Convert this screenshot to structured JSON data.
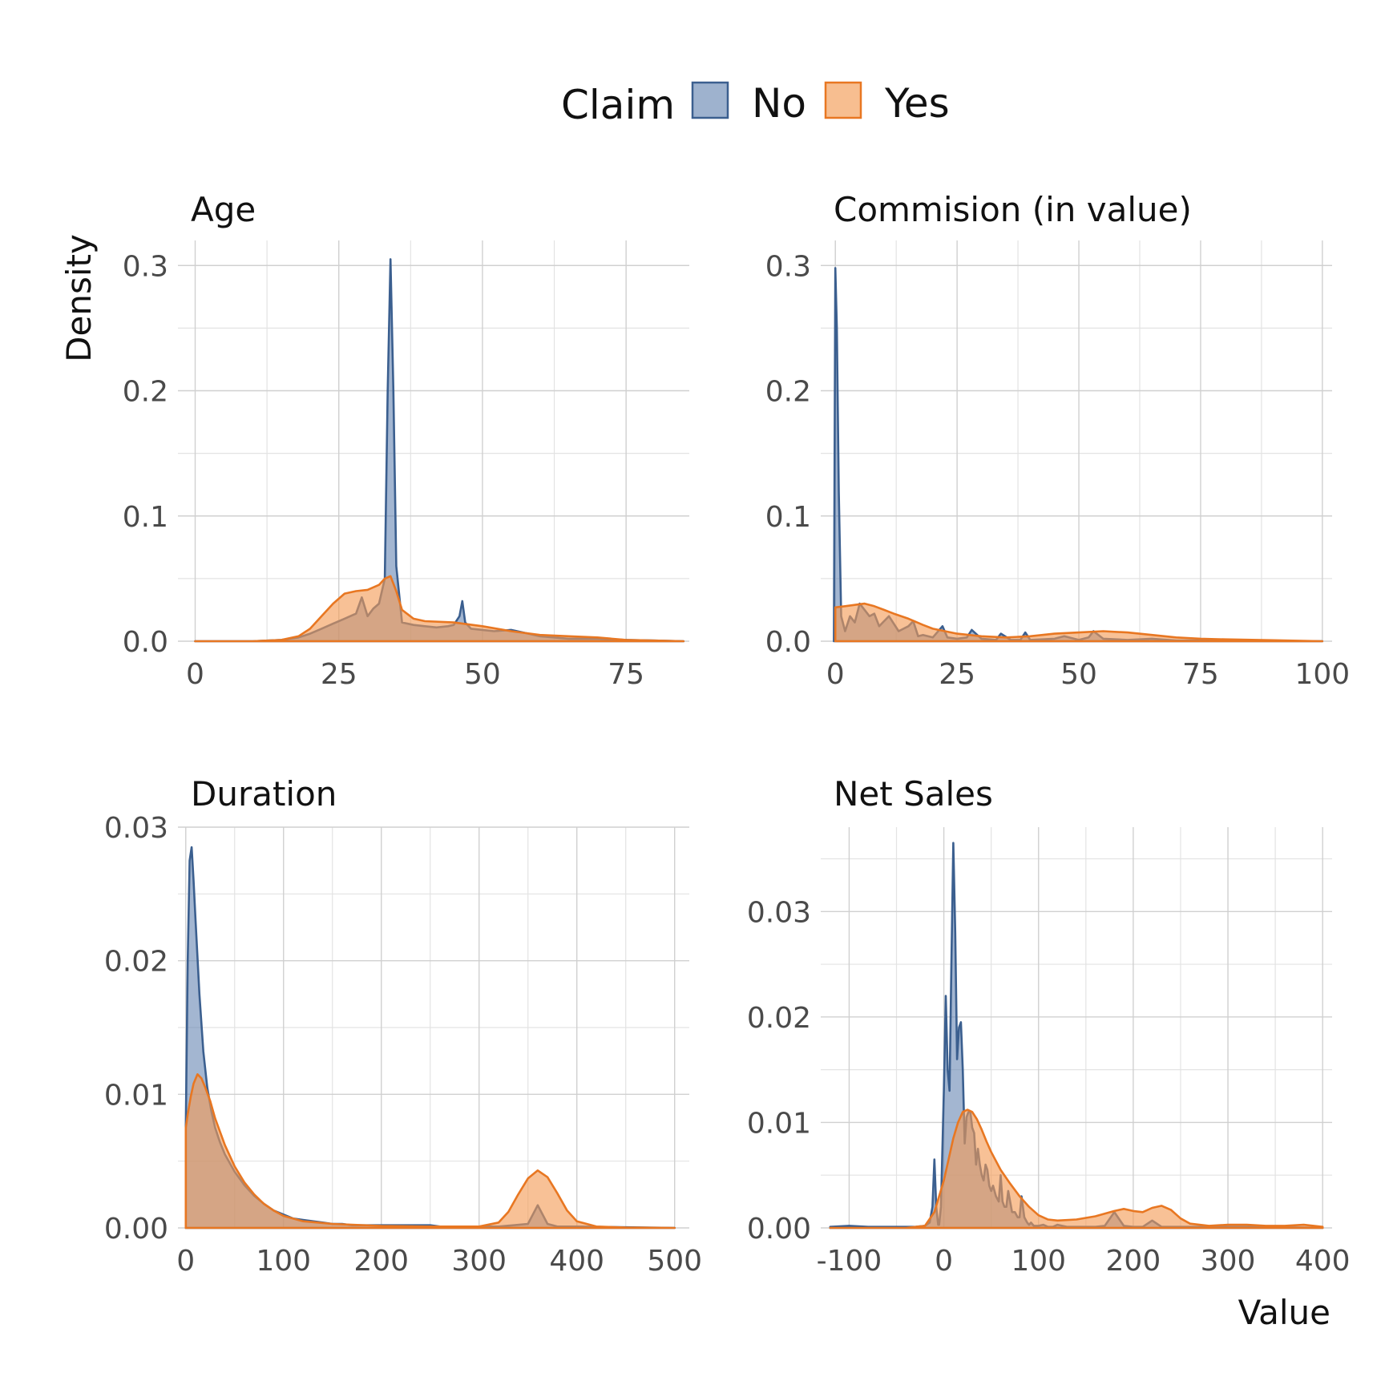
{
  "legend": {
    "title": "Claim",
    "entries": [
      {
        "label": "No",
        "fill": "#6a89b4",
        "stroke": "#3b5f8f"
      },
      {
        "label": "Yes",
        "fill": "#f39b55",
        "stroke": "#e87722"
      }
    ]
  },
  "axis_titles": {
    "y": "Density",
    "x": "Value"
  },
  "chart_data": [
    {
      "type": "area",
      "title": "Age",
      "xlim": [
        -3,
        86
      ],
      "ylim": [
        0,
        0.32
      ],
      "xticks": [
        0,
        25,
        50,
        75
      ],
      "xtick_labels": [
        "0",
        "25",
        "50",
        "75"
      ],
      "yticks": [
        0,
        0.1,
        0.2,
        0.3
      ],
      "ytick_labels": [
        "0.0",
        "0.1",
        "0.2",
        "0.3"
      ],
      "series": [
        {
          "name": "No",
          "x": [
            0,
            10,
            15,
            18,
            20,
            22,
            24,
            26,
            28,
            29,
            30,
            31,
            32,
            33,
            33.5,
            34,
            34.5,
            35,
            36,
            38,
            40,
            42,
            44,
            45,
            46,
            46.5,
            47,
            48,
            50,
            52,
            55,
            58,
            60,
            65,
            70,
            75,
            80,
            85
          ],
          "y": [
            0,
            0,
            0.001,
            0.003,
            0.006,
            0.01,
            0.014,
            0.018,
            0.022,
            0.035,
            0.02,
            0.026,
            0.03,
            0.05,
            0.2,
            0.305,
            0.2,
            0.06,
            0.015,
            0.013,
            0.012,
            0.011,
            0.012,
            0.013,
            0.02,
            0.032,
            0.015,
            0.01,
            0.009,
            0.008,
            0.009,
            0.006,
            0.004,
            0.002,
            0.002,
            0.001,
            0.0005,
            0
          ]
        },
        {
          "name": "Yes",
          "x": [
            0,
            10,
            15,
            18,
            20,
            22,
            24,
            26,
            28,
            30,
            32,
            33,
            34,
            35,
            36,
            38,
            40,
            45,
            50,
            55,
            60,
            65,
            70,
            75,
            80,
            85
          ],
          "y": [
            0,
            0,
            0.001,
            0.004,
            0.01,
            0.02,
            0.03,
            0.038,
            0.04,
            0.041,
            0.045,
            0.05,
            0.052,
            0.04,
            0.025,
            0.018,
            0.016,
            0.015,
            0.012,
            0.008,
            0.005,
            0.004,
            0.003,
            0.001,
            0.0005,
            0
          ]
        }
      ]
    },
    {
      "type": "area",
      "title": "Commision (in value)",
      "xlim": [
        -3,
        102
      ],
      "ylim": [
        0,
        0.32
      ],
      "xticks": [
        0,
        25,
        50,
        75,
        100
      ],
      "xtick_labels": [
        "0",
        "25",
        "50",
        "75",
        "100"
      ],
      "yticks": [
        0,
        0.1,
        0.2,
        0.3
      ],
      "ytick_labels": [
        "0.0",
        "0.1",
        "0.2",
        "0.3"
      ],
      "series": [
        {
          "name": "No",
          "x": [
            -0.3,
            0,
            0.3,
            0.7,
            1.2,
            2,
            3,
            4,
            5,
            6,
            7,
            8,
            9,
            10,
            11,
            12,
            13,
            14,
            15,
            16,
            17,
            18,
            20,
            22,
            23,
            25,
            27,
            28,
            30,
            33,
            34,
            36,
            38,
            39,
            40,
            45,
            47,
            50,
            52,
            53,
            55,
            60,
            65,
            70,
            80,
            90,
            100
          ],
          "y": [
            0,
            0.298,
            0.25,
            0.12,
            0.02,
            0.008,
            0.02,
            0.015,
            0.03,
            0.025,
            0.02,
            0.022,
            0.012,
            0.016,
            0.02,
            0.014,
            0.008,
            0.01,
            0.012,
            0.016,
            0.004,
            0.005,
            0.003,
            0.012,
            0.003,
            0.002,
            0.003,
            0.009,
            0.002,
            0.001,
            0.006,
            0.001,
            0.001,
            0.007,
            0.001,
            0.002,
            0.004,
            0.001,
            0.003,
            0.008,
            0.002,
            0.001,
            0.002,
            0.0005,
            0.0005,
            0.0002,
            0
          ]
        },
        {
          "name": "Yes",
          "x": [
            0,
            2,
            4,
            6,
            8,
            10,
            12,
            15,
            18,
            20,
            25,
            30,
            35,
            40,
            45,
            50,
            55,
            60,
            65,
            70,
            75,
            80,
            90,
            100
          ],
          "y": [
            0.027,
            0.028,
            0.029,
            0.03,
            0.028,
            0.025,
            0.022,
            0.018,
            0.013,
            0.01,
            0.006,
            0.004,
            0.003,
            0.004,
            0.006,
            0.007,
            0.008,
            0.007,
            0.005,
            0.003,
            0.002,
            0.0015,
            0.0008,
            0
          ]
        }
      ]
    },
    {
      "type": "area",
      "title": "Duration",
      "xlim": [
        -8,
        515
      ],
      "ylim": [
        0,
        0.03
      ],
      "xticks": [
        0,
        100,
        200,
        300,
        400,
        500
      ],
      "xtick_labels": [
        "0",
        "100",
        "200",
        "300",
        "400",
        "500"
      ],
      "yticks": [
        0,
        0.01,
        0.02,
        0.03
      ],
      "ytick_labels": [
        "0.00",
        "0.01",
        "0.02",
        "0.03"
      ],
      "series": [
        {
          "name": "No",
          "x": [
            0,
            2,
            4,
            6,
            8,
            10,
            14,
            18,
            22,
            26,
            30,
            35,
            40,
            50,
            60,
            70,
            80,
            90,
            100,
            110,
            120,
            130,
            140,
            150,
            160,
            170,
            180,
            200,
            230,
            250,
            260,
            280,
            300,
            320,
            350,
            355,
            360,
            365,
            370,
            380,
            400,
            450,
            480,
            500
          ],
          "y": [
            0.0075,
            0.02,
            0.0275,
            0.0285,
            0.026,
            0.023,
            0.0175,
            0.0132,
            0.0105,
            0.0088,
            0.0075,
            0.0064,
            0.0055,
            0.0042,
            0.0032,
            0.0024,
            0.0018,
            0.0013,
            0.001,
            0.0007,
            0.0006,
            0.0005,
            0.0004,
            0.0003,
            0.0003,
            0.0002,
            0.0002,
            0.0002,
            0.0002,
            0.0002,
            0.0001,
            0.0001,
            0.0001,
            0.0001,
            0.0003,
            0.001,
            0.0017,
            0.001,
            0.0003,
            0.0001,
            0.0001,
            5e-05,
            2e-05,
            0
          ]
        },
        {
          "name": "Yes",
          "x": [
            0,
            2,
            5,
            8,
            12,
            16,
            20,
            25,
            30,
            40,
            50,
            60,
            70,
            80,
            90,
            100,
            120,
            150,
            200,
            250,
            300,
            320,
            330,
            340,
            350,
            360,
            370,
            380,
            390,
            400,
            420,
            450,
            500
          ],
          "y": [
            0.0075,
            0.0085,
            0.0098,
            0.0108,
            0.0115,
            0.0112,
            0.0105,
            0.0095,
            0.0082,
            0.0062,
            0.0046,
            0.0034,
            0.0025,
            0.0018,
            0.0013,
            0.0009,
            0.0005,
            0.0003,
            0.00015,
            0.0001,
            0.0001,
            0.0004,
            0.0012,
            0.0025,
            0.0037,
            0.0043,
            0.0038,
            0.0026,
            0.0013,
            0.0005,
            0.0001,
            3e-05,
            0
          ]
        }
      ]
    },
    {
      "type": "area",
      "title": "Net Sales",
      "xlim": [
        -130,
        410
      ],
      "ylim": [
        0,
        0.038
      ],
      "xticks": [
        -100,
        0,
        100,
        200,
        300,
        400
      ],
      "xtick_labels": [
        "-100",
        "0",
        "100",
        "200",
        "300",
        "400"
      ],
      "yticks": [
        0,
        0.01,
        0.02,
        0.03
      ],
      "ytick_labels": [
        "0.00",
        "0.01",
        "0.02",
        "0.03"
      ],
      "series": [
        {
          "name": "No",
          "x": [
            -120,
            -100,
            -80,
            -60,
            -40,
            -30,
            -20,
            -15,
            -12,
            -10,
            -8,
            -6,
            -5,
            -3,
            0,
            2,
            4,
            6,
            8,
            10,
            12,
            14,
            16,
            18,
            20,
            22,
            24,
            26,
            28,
            30,
            32,
            34,
            36,
            38,
            40,
            42,
            44,
            46,
            48,
            50,
            52,
            55,
            58,
            60,
            62,
            64,
            66,
            68,
            70,
            72,
            75,
            78,
            80,
            82,
            85,
            88,
            90,
            92,
            95,
            98,
            100,
            105,
            110,
            115,
            120,
            130,
            140,
            150,
            160,
            170,
            180,
            190,
            200,
            210,
            220,
            230,
            240,
            260,
            280,
            300,
            320,
            340,
            360,
            380,
            400
          ],
          "y": [
            0.0001,
            0.0002,
            0.0001,
            0.0001,
            0.0001,
            0.0001,
            0.0002,
            0.0005,
            0.002,
            0.0065,
            0.002,
            0.0003,
            0.0003,
            0.002,
            0.013,
            0.022,
            0.015,
            0.013,
            0.025,
            0.0365,
            0.028,
            0.016,
            0.019,
            0.0195,
            0.015,
            0.008,
            0.0105,
            0.011,
            0.011,
            0.0095,
            0.009,
            0.006,
            0.0075,
            0.006,
            0.005,
            0.0045,
            0.006,
            0.0055,
            0.004,
            0.0035,
            0.004,
            0.003,
            0.0025,
            0.005,
            0.0025,
            0.002,
            0.002,
            0.0035,
            0.0025,
            0.0015,
            0.0015,
            0.001,
            0.001,
            0.003,
            0.001,
            0.0005,
            0.0003,
            0.0005,
            0.0002,
            0.0002,
            0.0002,
            0.0003,
            0.0001,
            0.0001,
            0.0003,
            0.0001,
            0.0001,
            0.0001,
            0.0001,
            0.0002,
            0.0015,
            0.0002,
            0.0001,
            0.0001,
            0.0007,
            0.0001,
            0.0001,
            0.0001,
            0.0001,
            0.0001,
            0.0001,
            0.0001,
            5e-05,
            3e-05,
            0
          ]
        },
        {
          "name": "Yes",
          "x": [
            -120,
            -80,
            -40,
            -20,
            -10,
            0,
            5,
            10,
            15,
            20,
            25,
            30,
            35,
            40,
            45,
            50,
            60,
            70,
            80,
            90,
            100,
            110,
            120,
            140,
            160,
            180,
            190,
            200,
            210,
            220,
            230,
            240,
            250,
            260,
            280,
            300,
            320,
            340,
            360,
            380,
            400
          ],
          "y": [
            0,
            0,
            0,
            0.0002,
            0.0015,
            0.0045,
            0.0065,
            0.0085,
            0.01,
            0.011,
            0.0112,
            0.011,
            0.0103,
            0.0093,
            0.0082,
            0.0072,
            0.0055,
            0.0042,
            0.003,
            0.002,
            0.0012,
            0.0008,
            0.0007,
            0.0008,
            0.0011,
            0.0016,
            0.0018,
            0.0016,
            0.0015,
            0.0019,
            0.0021,
            0.0017,
            0.0009,
            0.0004,
            0.0002,
            0.0003,
            0.0003,
            0.0002,
            0.0002,
            0.0003,
            0.0001
          ]
        }
      ]
    }
  ]
}
